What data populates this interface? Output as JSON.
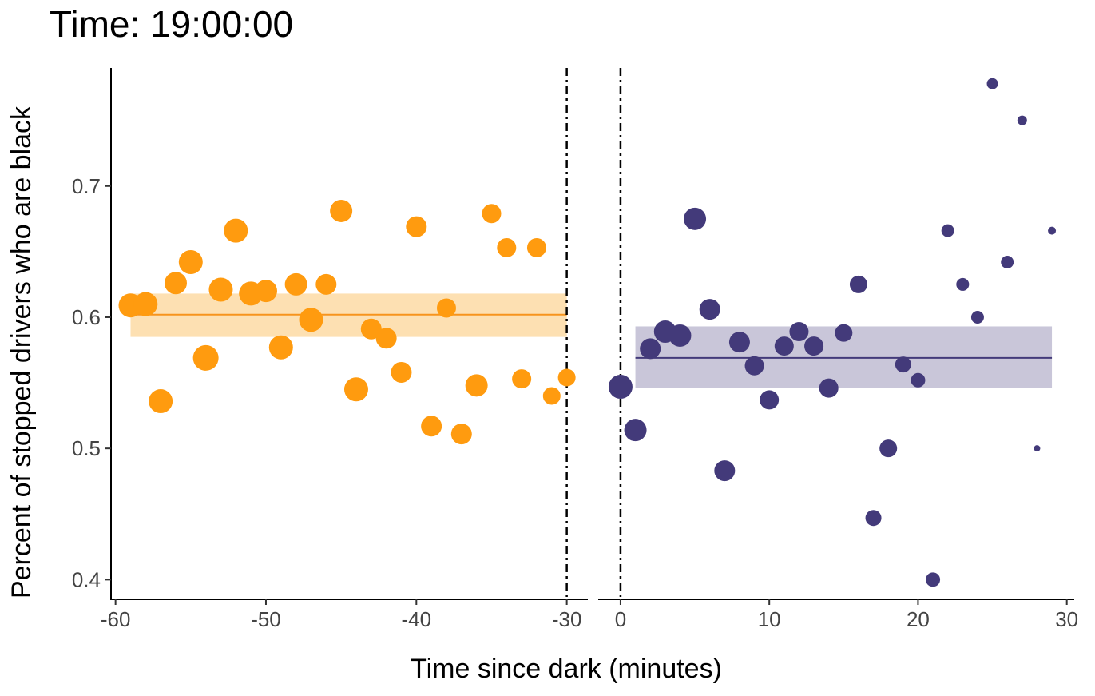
{
  "chart_data": {
    "type": "scatter",
    "title": "Time: 19:00:00",
    "xlabel": "Time since dark (minutes)",
    "ylabel": "Percent of stopped drivers who are black",
    "ylim": [
      0.385,
      0.79
    ],
    "y_ticks": [
      0.4,
      0.5,
      0.6,
      0.7
    ],
    "y_tick_labels": [
      "0.4",
      "0.5",
      "0.6",
      "0.7"
    ],
    "grid": false,
    "legend": "none",
    "panels": [
      {
        "name": "before",
        "xlim": [
          -60.3,
          -28.6
        ],
        "x_ticks": [
          -60,
          -50,
          -40,
          -30
        ],
        "x_tick_labels": [
          "-60",
          "-50",
          "-40",
          "-30"
        ],
        "color": "#FF9B0F",
        "band_color": "#FDE0B2",
        "line_color": "#F7941D",
        "cutoff_x": -30,
        "fit": {
          "x_start": -59,
          "x_end": -30,
          "y": 0.602,
          "lower": 0.585,
          "upper": 0.618
        },
        "points": [
          {
            "x": -59,
            "y": 0.609,
            "r": 15
          },
          {
            "x": -58,
            "y": 0.61,
            "r": 15
          },
          {
            "x": -57,
            "y": 0.536,
            "r": 15
          },
          {
            "x": -56,
            "y": 0.626,
            "r": 14
          },
          {
            "x": -55,
            "y": 0.642,
            "r": 15
          },
          {
            "x": -54,
            "y": 0.569,
            "r": 16
          },
          {
            "x": -53,
            "y": 0.621,
            "r": 15
          },
          {
            "x": -52,
            "y": 0.666,
            "r": 15
          },
          {
            "x": -51,
            "y": 0.618,
            "r": 15
          },
          {
            "x": -50,
            "y": 0.62,
            "r": 14
          },
          {
            "x": -49,
            "y": 0.577,
            "r": 15
          },
          {
            "x": -48,
            "y": 0.625,
            "r": 14
          },
          {
            "x": -47,
            "y": 0.598,
            "r": 15
          },
          {
            "x": -46,
            "y": 0.625,
            "r": 13
          },
          {
            "x": -45,
            "y": 0.681,
            "r": 14
          },
          {
            "x": -44,
            "y": 0.545,
            "r": 15
          },
          {
            "x": -43,
            "y": 0.591,
            "r": 13
          },
          {
            "x": -42,
            "y": 0.584,
            "r": 13
          },
          {
            "x": -41,
            "y": 0.558,
            "r": 13
          },
          {
            "x": -40,
            "y": 0.669,
            "r": 13
          },
          {
            "x": -39,
            "y": 0.517,
            "r": 13
          },
          {
            "x": -38,
            "y": 0.607,
            "r": 12
          },
          {
            "x": -37,
            "y": 0.511,
            "r": 13
          },
          {
            "x": -36,
            "y": 0.548,
            "r": 14
          },
          {
            "x": -35,
            "y": 0.679,
            "r": 12
          },
          {
            "x": -34,
            "y": 0.653,
            "r": 12
          },
          {
            "x": -33,
            "y": 0.553,
            "r": 12
          },
          {
            "x": -32,
            "y": 0.653,
            "r": 12
          },
          {
            "x": -31,
            "y": 0.54,
            "r": 11
          },
          {
            "x": -30,
            "y": 0.554,
            "r": 11
          }
        ]
      },
      {
        "name": "after",
        "xlim": [
          -1.5,
          30.5
        ],
        "x_ticks": [
          0,
          10,
          20,
          30
        ],
        "x_tick_labels": [
          "0",
          "10",
          "20",
          "30"
        ],
        "color": "#433A7A",
        "band_color": "#C9C6D9",
        "line_color": "#433A7A",
        "cutoff_x": 0,
        "fit": {
          "x_start": 1,
          "x_end": 29,
          "y": 0.569,
          "lower": 0.546,
          "upper": 0.593
        },
        "points": [
          {
            "x": 0,
            "y": 0.547,
            "r": 15
          },
          {
            "x": 1,
            "y": 0.514,
            "r": 14
          },
          {
            "x": 2,
            "y": 0.576,
            "r": 13
          },
          {
            "x": 3,
            "y": 0.589,
            "r": 14
          },
          {
            "x": 4,
            "y": 0.586,
            "r": 14
          },
          {
            "x": 5,
            "y": 0.675,
            "r": 14
          },
          {
            "x": 6,
            "y": 0.606,
            "r": 13
          },
          {
            "x": 7,
            "y": 0.483,
            "r": 13
          },
          {
            "x": 8,
            "y": 0.581,
            "r": 13
          },
          {
            "x": 9,
            "y": 0.563,
            "r": 12
          },
          {
            "x": 10,
            "y": 0.537,
            "r": 12
          },
          {
            "x": 11,
            "y": 0.578,
            "r": 12
          },
          {
            "x": 12,
            "y": 0.589,
            "r": 12
          },
          {
            "x": 13,
            "y": 0.578,
            "r": 12
          },
          {
            "x": 14,
            "y": 0.546,
            "r": 12
          },
          {
            "x": 15,
            "y": 0.588,
            "r": 11
          },
          {
            "x": 16,
            "y": 0.625,
            "r": 11
          },
          {
            "x": 17,
            "y": 0.447,
            "r": 10
          },
          {
            "x": 18,
            "y": 0.5,
            "r": 11
          },
          {
            "x": 19,
            "y": 0.564,
            "r": 10
          },
          {
            "x": 20,
            "y": 0.552,
            "r": 9
          },
          {
            "x": 21,
            "y": 0.4,
            "r": 9
          },
          {
            "x": 22,
            "y": 0.666,
            "r": 8
          },
          {
            "x": 23,
            "y": 0.625,
            "r": 8
          },
          {
            "x": 24,
            "y": 0.6,
            "r": 8
          },
          {
            "x": 25,
            "y": 0.778,
            "r": 7
          },
          {
            "x": 26,
            "y": 0.642,
            "r": 8
          },
          {
            "x": 27,
            "y": 0.75,
            "r": 6
          },
          {
            "x": 28,
            "y": 0.5,
            "r": 4
          },
          {
            "x": 29,
            "y": 0.666,
            "r": 5
          }
        ]
      }
    ]
  }
}
